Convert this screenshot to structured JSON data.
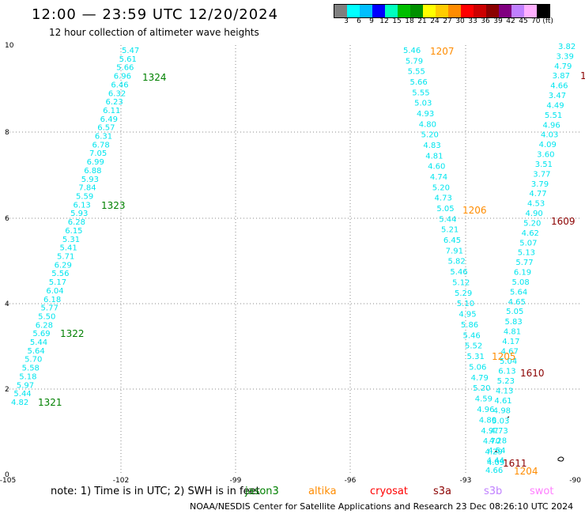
{
  "header": {
    "title": "12:00 — 23:59 UTC 12/20/2024",
    "subtitle": "12 hour collection of altimeter wave heights"
  },
  "colorbar": {
    "colors": [
      "#7f7f7f",
      "#00ffff",
      "#00bfff",
      "#0000ff",
      "#00ffbf",
      "#00bf00",
      "#009000",
      "#ffff00",
      "#ffcc00",
      "#ff8c00",
      "#ff0000",
      "#cc0000",
      "#8b0000",
      "#800080",
      "#c080ff",
      "#ffb0ff",
      "#000000"
    ],
    "labels": [
      "3",
      "6",
      "9",
      "12",
      "15",
      "18",
      "21",
      "24",
      "27",
      "30",
      "33",
      "36",
      "39",
      "42",
      "45",
      "70 (ft)"
    ]
  },
  "map": {
    "lon_ticks": [
      "-105",
      "-102",
      "-99",
      "-96",
      "-93",
      "-90"
    ],
    "lat_ticks": [
      "0",
      "2",
      "4",
      "6",
      "8",
      "10"
    ],
    "track_color": "#00e5ee",
    "tracks": [
      {
        "values": [
          "5.47",
          "5.61",
          "5.66",
          "6.96",
          "6.46",
          "6.32",
          "6.23",
          "6.11",
          "6.49",
          "6.57",
          "6.31",
          "6.78",
          "7.05",
          "6.99",
          "6.88",
          "5.93",
          "7.84",
          "5.59",
          "6.13",
          "5.93",
          "6.28",
          "6.15",
          "5.31",
          "5.41",
          "5.71",
          "6.29",
          "5.56",
          "5.17",
          "6.04",
          "6.18",
          "5.77",
          "5.50",
          "6.28",
          "5.69",
          "5.44",
          "5.64",
          "5.70",
          "5.58",
          "5.18",
          "5.97",
          "5.44",
          "4.82"
        ]
      },
      {
        "values": [
          "5.46",
          "5.79",
          "5.55",
          "5.66",
          "5.55",
          "5.03",
          "4.93",
          "4.80",
          "5.20",
          "4.83",
          "4.81",
          "4.60",
          "4.74",
          "5.20",
          "4.73",
          "5.05",
          "5.44",
          "5.21",
          "6.45",
          "7.91",
          "5.82",
          "5.46",
          "5.12",
          "5.29",
          "5.10",
          "4.95",
          "5.86",
          "5.46",
          "5.52",
          "5.31",
          "5.06",
          "4.79",
          "5.20",
          "4.59",
          "4.96",
          "4.80",
          "4.97",
          "4.70",
          "4.29",
          "4.09"
        ]
      },
      {
        "values": [
          "3.82",
          "3.39",
          "4.79",
          "3.87",
          "4.66",
          "3.47",
          "4.49",
          "5.51",
          "4.96",
          "4.03",
          "4.09",
          "3.60",
          "3.51",
          "3.77",
          "3.79",
          "4.77",
          "4.53",
          "4.90",
          "5.20",
          "4.62",
          "5.07",
          "5.13",
          "5.77",
          "6.19",
          "5.08",
          "5.64",
          "4.65",
          "5.05",
          "5.83",
          "4.81",
          "4.17",
          "4.67",
          "5.04",
          "6.13",
          "5.23",
          "4.13",
          "4.61",
          "4.98",
          "5.03",
          "4.73",
          "4.28",
          "4.54",
          "4.44",
          "4.66"
        ]
      }
    ],
    "time_labels": [
      {
        "text": "1324",
        "color": "#008000"
      },
      {
        "text": "1323",
        "color": "#008000"
      },
      {
        "text": "1322",
        "color": "#008000"
      },
      {
        "text": "1321",
        "color": "#008000"
      },
      {
        "text": "1207",
        "color": "#ff8c00"
      },
      {
        "text": "1206",
        "color": "#ff8c00"
      },
      {
        "text": "1205",
        "color": "#ff8c00"
      },
      {
        "text": "1204",
        "color": "#ff8c00"
      },
      {
        "text": "1",
        "color": "#8b0000"
      },
      {
        "text": "1609",
        "color": "#8b0000"
      },
      {
        "text": "1610",
        "color": "#8b0000"
      },
      {
        "text": "1611",
        "color": "#8b0000"
      }
    ]
  },
  "footer": {
    "note": "note:  1) Time is in UTC; 2) SWH is in feet",
    "satellites": [
      {
        "name": "jason3",
        "color": "#008000"
      },
      {
        "name": "altika",
        "color": "#ff8c00"
      },
      {
        "name": "cryosat",
        "color": "#ff0000"
      },
      {
        "name": "s3a",
        "color": "#8b0000"
      },
      {
        "name": "s3b",
        "color": "#c080ff"
      },
      {
        "name": "swot",
        "color": "#ff80ff"
      }
    ],
    "credit": "NOAA/NESDIS Center for Satellite Applications and Research     23 Dec 08:26:10 UTC 2024"
  }
}
